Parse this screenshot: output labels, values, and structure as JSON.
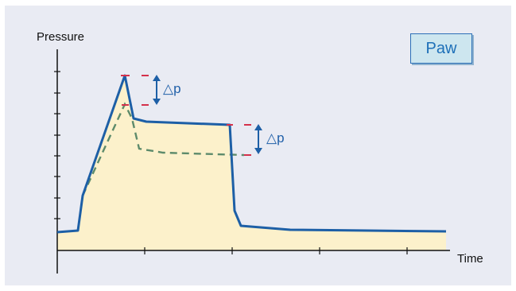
{
  "labels": {
    "y_axis": "Pressure",
    "x_axis": "Time",
    "badge": "Paw",
    "delta_top": "△p",
    "delta_right": "△p"
  },
  "colors": {
    "panel_background": "#e9ebf3",
    "fill": "#fcf1cb",
    "main_line": "#1d5fa6",
    "dashed_line": "#5d8b6b",
    "marker": "#d4314b",
    "badge_fill": "#cde6ef",
    "badge_border": "#2c6fb7"
  }
}
